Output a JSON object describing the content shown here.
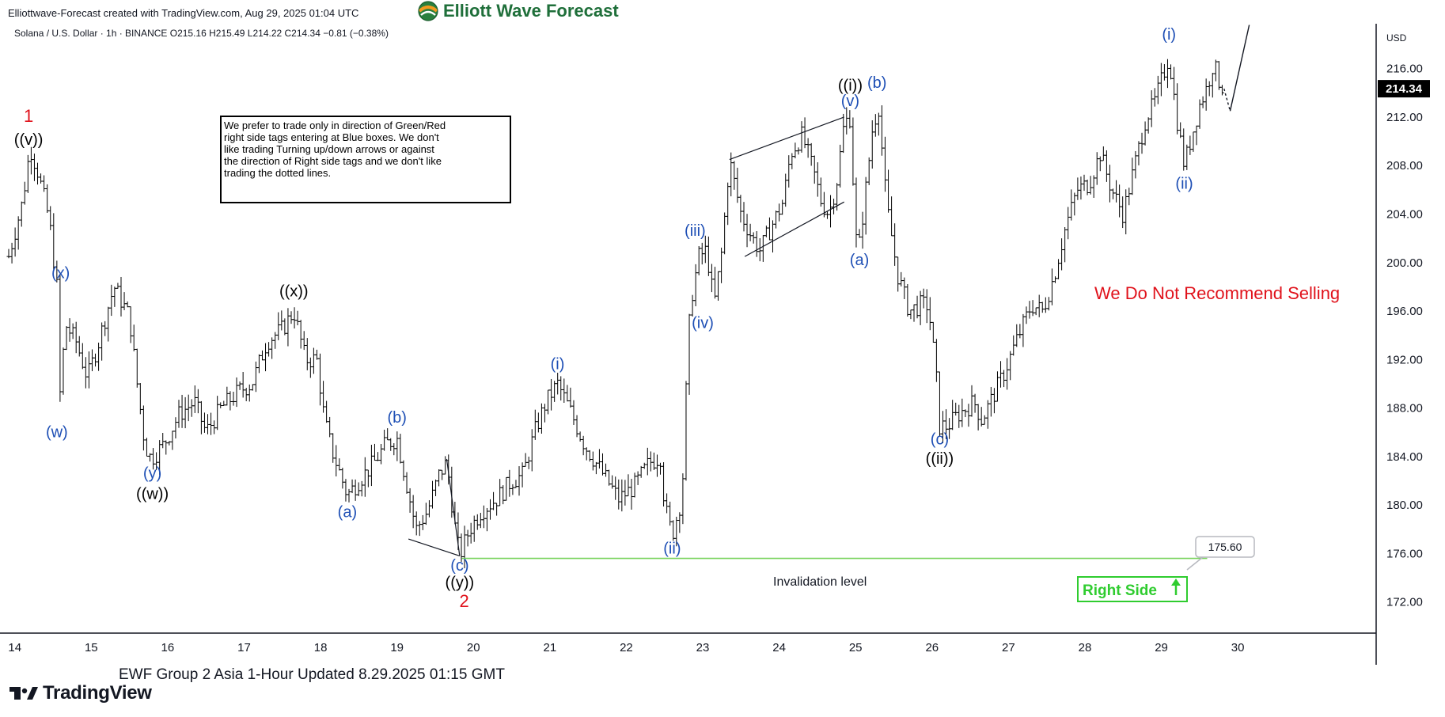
{
  "header": {
    "credit": "Elliottwave-Forecast created with TradingView.com, Aug 29, 2025 01:04 UTC",
    "brand": "Elliott Wave Forecast"
  },
  "footer": {
    "caption": "EWF Group 2 Asia 1-Hour Updated 8.29.2025 01:15 GMT",
    "platform": "TradingView"
  },
  "colors": {
    "wave_blue": "#1e4fb5",
    "wave_black": "#000000",
    "wave_red": "#e0121b",
    "invalidation_green": "#77d35b",
    "right_side_green": "#2fcc2f",
    "candle": "#000000"
  },
  "icons": {
    "brand_logo": "globe-logo-icon",
    "right_side_arrow": "arrow-up-icon",
    "platform_logo": "tradingview-logo-icon"
  },
  "chart_data": {
    "type": "candlestick",
    "symbol_line": "Solana / U.S. Dollar · 1h · BINANCE  O215.16  H215.49  L214.22  C214.34  −0.81 (−0.38%)",
    "ohlc": {
      "open": 215.16,
      "high": 215.49,
      "low": 214.22,
      "close": 214.34,
      "change": -0.81,
      "change_pct": -0.38
    },
    "currency": "USD",
    "last_price": "214.34",
    "y_range": [
      169.5,
      219.7
    ],
    "y_ticks": [
      172,
      176,
      180,
      184,
      188,
      192,
      196,
      200,
      204,
      208,
      212,
      216
    ],
    "y_tick_labels": [
      "172.00",
      "176.00",
      "180.00",
      "184.00",
      "188.00",
      "192.00",
      "196.00",
      "200.00",
      "204.00",
      "208.00",
      "212.00",
      "216.00"
    ],
    "x_range": [
      13.92,
      31.8
    ],
    "x_ticks": [
      14,
      15,
      16,
      17,
      18,
      19,
      20,
      21,
      22,
      23,
      24,
      25,
      26,
      27,
      28,
      29,
      30
    ],
    "x_tick_labels": [
      "14",
      "15",
      "16",
      "17",
      "18",
      "19",
      "20",
      "21",
      "22",
      "23",
      "24",
      "25",
      "26",
      "27",
      "28",
      "29",
      "30"
    ],
    "disclaimer": "We prefer to trade only in direction of Green/Red right side tags entering at Blue boxes. We don't like trading Turning up/down arrows or against the direction of Right side tags and we don't like trading the dotted lines.",
    "disclaimer_lines": [
      "We prefer to trade only in direction of Green/Red",
      "right side tags entering at Blue boxes. We don't",
      "like trading Turning up/down arrows or against",
      "the direction of Right side tags and we don't like",
      "trading the dotted lines."
    ],
    "invalidation": {
      "label": "Invalidation level",
      "value": 175.6,
      "value_label": "175.60",
      "x_start": 19.85,
      "x_end": 29.6
    },
    "notice": "We Do Not Recommend Selling",
    "right_side_tag": "Right Side",
    "price_path": [
      [
        13.92,
        200.5
      ],
      [
        14.1,
        205.0
      ],
      [
        14.2,
        209.5
      ],
      [
        14.3,
        207.5
      ],
      [
        14.45,
        203.5
      ],
      [
        14.55,
        198.0
      ],
      [
        14.6,
        187.5
      ],
      [
        14.65,
        195.0
      ],
      [
        14.8,
        193.5
      ],
      [
        14.95,
        190.5
      ],
      [
        15.1,
        193.5
      ],
      [
        15.25,
        197.0
      ],
      [
        15.3,
        198.0
      ],
      [
        15.5,
        195.5
      ],
      [
        15.6,
        190.0
      ],
      [
        15.7,
        185.0
      ],
      [
        15.78,
        183.8
      ],
      [
        15.95,
        185.0
      ],
      [
        16.15,
        187.5
      ],
      [
        16.35,
        188.5
      ],
      [
        16.5,
        186.0
      ],
      [
        16.7,
        188.0
      ],
      [
        16.95,
        189.5
      ],
      [
        17.1,
        190.0
      ],
      [
        17.3,
        193.5
      ],
      [
        17.5,
        194.5
      ],
      [
        17.65,
        196.0
      ],
      [
        17.8,
        192.0
      ],
      [
        17.95,
        192.0
      ],
      [
        18.05,
        187.0
      ],
      [
        18.15,
        184.5
      ],
      [
        18.35,
        180.8
      ],
      [
        18.5,
        182.0
      ],
      [
        18.7,
        183.5
      ],
      [
        18.85,
        185.0
      ],
      [
        19.0,
        185.5
      ],
      [
        19.15,
        181.0
      ],
      [
        19.25,
        178.0
      ],
      [
        19.4,
        179.5
      ],
      [
        19.55,
        182.5
      ],
      [
        19.65,
        183.5
      ],
      [
        19.75,
        178.5
      ],
      [
        19.82,
        175.8
      ],
      [
        19.95,
        178.0
      ],
      [
        20.1,
        179.5
      ],
      [
        20.3,
        180.5
      ],
      [
        20.5,
        182.0
      ],
      [
        20.65,
        182.5
      ],
      [
        20.8,
        186.0
      ],
      [
        20.95,
        188.5
      ],
      [
        21.1,
        190.0
      ],
      [
        21.25,
        188.0
      ],
      [
        21.45,
        185.0
      ],
      [
        21.6,
        183.5
      ],
      [
        21.75,
        182.0
      ],
      [
        21.9,
        180.5
      ],
      [
        22.1,
        181.5
      ],
      [
        22.3,
        183.5
      ],
      [
        22.45,
        184.0
      ],
      [
        22.5,
        180.0
      ],
      [
        22.6,
        177.5
      ],
      [
        22.7,
        180.0
      ],
      [
        22.75,
        183.0
      ],
      [
        22.8,
        193.0
      ],
      [
        22.85,
        197.0
      ],
      [
        22.95,
        200.5
      ],
      [
        23.05,
        201.0
      ],
      [
        23.15,
        196.5
      ],
      [
        23.25,
        201.0
      ],
      [
        23.35,
        208.5
      ],
      [
        23.5,
        204.0
      ],
      [
        23.65,
        202.0
      ],
      [
        23.75,
        201.0
      ],
      [
        23.9,
        203.0
      ],
      [
        24.05,
        205.0
      ],
      [
        24.15,
        209.0
      ],
      [
        24.3,
        210.5
      ],
      [
        24.45,
        207.5
      ],
      [
        24.55,
        205.0
      ],
      [
        24.65,
        204.0
      ],
      [
        24.75,
        206.5
      ],
      [
        24.85,
        211.5
      ],
      [
        24.93,
        212.0
      ],
      [
        25.0,
        202.0
      ],
      [
        25.05,
        201.5
      ],
      [
        25.15,
        207.0
      ],
      [
        25.22,
        211.0
      ],
      [
        25.3,
        213.0
      ],
      [
        25.4,
        205.0
      ],
      [
        25.55,
        199.0
      ],
      [
        25.7,
        196.0
      ],
      [
        25.85,
        196.5
      ],
      [
        25.95,
        196.5
      ],
      [
        26.05,
        191.0
      ],
      [
        26.1,
        186.5
      ],
      [
        26.2,
        186.5
      ],
      [
        26.35,
        187.5
      ],
      [
        26.55,
        188.5
      ],
      [
        26.65,
        187.0
      ],
      [
        26.8,
        189.0
      ],
      [
        26.95,
        191.0
      ],
      [
        27.1,
        193.5
      ],
      [
        27.3,
        196.5
      ],
      [
        27.45,
        196.0
      ],
      [
        27.6,
        199.0
      ],
      [
        27.75,
        203.0
      ],
      [
        27.9,
        206.0
      ],
      [
        28.05,
        206.5
      ],
      [
        28.2,
        209.0
      ],
      [
        28.35,
        206.0
      ],
      [
        28.5,
        204.0
      ],
      [
        28.65,
        208.0
      ],
      [
        28.8,
        212.0
      ],
      [
        28.9,
        213.0
      ],
      [
        29.0,
        215.0
      ],
      [
        29.1,
        217.0
      ],
      [
        29.2,
        212.0
      ],
      [
        29.3,
        208.0
      ],
      [
        29.4,
        210.5
      ],
      [
        29.5,
        213.0
      ],
      [
        29.6,
        214.5
      ],
      [
        29.68,
        216.5
      ],
      [
        29.75,
        215.0
      ],
      [
        29.82,
        214.34
      ]
    ],
    "projection": {
      "dotted": [
        [
          29.82,
          214.34
        ],
        [
          29.9,
          212.5
        ]
      ],
      "solid": [
        [
          29.9,
          212.5
        ],
        [
          30.15,
          219.6
        ]
      ]
    },
    "channel_lines": [
      [
        [
          23.35,
          208.5
        ],
        [
          24.85,
          212.0
        ]
      ],
      [
        [
          23.55,
          200.5
        ],
        [
          24.85,
          205.0
        ]
      ],
      [
        [
          19.15,
          177.2
        ],
        [
          19.82,
          175.8
        ]
      ],
      [
        [
          19.65,
          183.8
        ],
        [
          19.82,
          175.8
        ]
      ]
    ],
    "wave_labels": [
      {
        "text": "1",
        "x": 14.18,
        "y": 211.6,
        "color": "red"
      },
      {
        "text": "((v))",
        "x": 14.18,
        "y": 209.7,
        "color": "black"
      },
      {
        "text": "(x)",
        "x": 14.6,
        "y": 198.7,
        "color": "blue"
      },
      {
        "text": "(w)",
        "x": 14.55,
        "y": 185.6,
        "color": "blue"
      },
      {
        "text": "(y)",
        "x": 15.8,
        "y": 182.2,
        "color": "blue"
      },
      {
        "text": "((w))",
        "x": 15.8,
        "y": 180.5,
        "color": "black"
      },
      {
        "text": "((x))",
        "x": 17.65,
        "y": 197.2,
        "color": "black"
      },
      {
        "text": "(a)",
        "x": 18.35,
        "y": 179.0,
        "color": "blue"
      },
      {
        "text": "(b)",
        "x": 19.0,
        "y": 186.8,
        "color": "blue"
      },
      {
        "text": "(c)",
        "x": 19.82,
        "y": 174.6,
        "color": "blue"
      },
      {
        "text": "((y))",
        "x": 19.82,
        "y": 173.2,
        "color": "black"
      },
      {
        "text": "2",
        "x": 19.88,
        "y": 171.6,
        "color": "red"
      },
      {
        "text": "(i)",
        "x": 21.1,
        "y": 191.2,
        "color": "blue"
      },
      {
        "text": "(ii)",
        "x": 22.6,
        "y": 176.0,
        "color": "blue"
      },
      {
        "text": "(iii)",
        "x": 22.9,
        "y": 202.2,
        "color": "blue"
      },
      {
        "text": "(iv)",
        "x": 23.0,
        "y": 194.6,
        "color": "blue"
      },
      {
        "text": "((i))",
        "x": 24.93,
        "y": 214.2,
        "color": "black"
      },
      {
        "text": "(v)",
        "x": 24.93,
        "y": 212.9,
        "color": "blue"
      },
      {
        "text": "(b)",
        "x": 25.28,
        "y": 214.4,
        "color": "blue"
      },
      {
        "text": "(a)",
        "x": 25.05,
        "y": 199.8,
        "color": "blue"
      },
      {
        "text": "(c)",
        "x": 26.1,
        "y": 185.0,
        "color": "blue"
      },
      {
        "text": "((ii))",
        "x": 26.1,
        "y": 183.4,
        "color": "black"
      },
      {
        "text": "(i)",
        "x": 29.1,
        "y": 218.4,
        "color": "blue"
      },
      {
        "text": "(ii)",
        "x": 29.3,
        "y": 206.1,
        "color": "blue"
      }
    ]
  }
}
